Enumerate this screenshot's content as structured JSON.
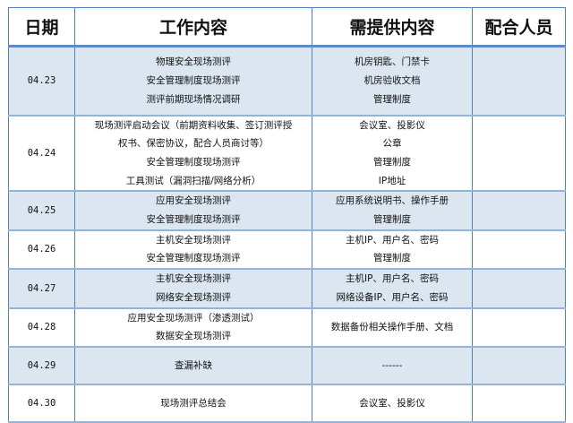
{
  "headers": {
    "date": "日期",
    "work": "工作内容",
    "provide": "需提供内容",
    "staff": "配合人员"
  },
  "rows": [
    {
      "date": "04.23",
      "work": [
        "物理安全现场测评",
        "安全管理制度现场测评",
        "测评前期现场情况调研"
      ],
      "provide": [
        "机房钥匙、门禁卡",
        "机房验收文档",
        "管理制度"
      ],
      "staff": ""
    },
    {
      "date": "04.24",
      "work": [
        "现场测评启动会议（前期资料收集、签订测评授",
        "权书、保密协议，配合人员商讨等）",
        "安全管理制度现场测评",
        "工具测试（漏洞扫描/网络分析）"
      ],
      "provide": [
        "会议室、投影仪",
        "公章",
        "管理制度",
        "IP地址"
      ],
      "staff": ""
    },
    {
      "date": "04.25",
      "work": [
        "应用安全现场测评",
        "安全管理制度现场测评"
      ],
      "provide": [
        "应用系统说明书、操作手册",
        "管理制度"
      ],
      "staff": ""
    },
    {
      "date": "04.26",
      "work": [
        "主机安全现场测评",
        "安全管理制度现场测评"
      ],
      "provide": [
        "主机IP、用户名、密码",
        "管理制度"
      ],
      "staff": ""
    },
    {
      "date": "04.27",
      "work": [
        "主机安全现场测评",
        "网络安全现场测评"
      ],
      "provide": [
        "主机IP、用户名、密码",
        "网络设备IP、用户名、密码"
      ],
      "staff": ""
    },
    {
      "date": "04.28",
      "work": [
        "应用安全现场测评（渗透测试）",
        "数据安全现场测评"
      ],
      "provide": [
        "数据备份相关操作手册、文档"
      ],
      "staff": ""
    },
    {
      "date": "04.29",
      "work": [
        "查漏补缺"
      ],
      "provide": [
        "------"
      ],
      "staff": ""
    },
    {
      "date": "04.30",
      "work": [
        "现场测评总结会"
      ],
      "provide": [
        "会议室、投影仪"
      ],
      "staff": ""
    }
  ],
  "colors": {
    "border": "#4f81bd",
    "shade": "#dce6f1"
  }
}
